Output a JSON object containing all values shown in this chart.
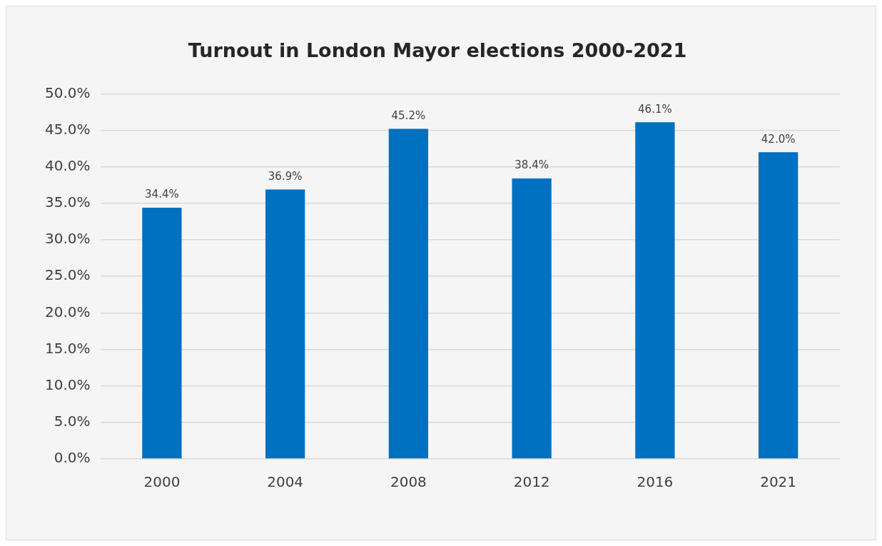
{
  "chart_data": {
    "type": "bar",
    "title": "Turnout in London Mayor elections 2000-2021",
    "categories": [
      "2000",
      "2004",
      "2008",
      "2012",
      "2016",
      "2021"
    ],
    "values": [
      34.4,
      36.9,
      45.2,
      38.4,
      46.1,
      42.0
    ],
    "value_labels": [
      "34.4%",
      "36.9%",
      "45.2%",
      "38.4%",
      "46.1%",
      "42.0%"
    ],
    "color": "#0070c0",
    "ylim": [
      0,
      50
    ],
    "yticks": [
      {
        "value": 0,
        "label": "0.0%"
      },
      {
        "value": 5,
        "label": "5.0%"
      },
      {
        "value": 10,
        "label": "10.0%"
      },
      {
        "value": 15,
        "label": "15.0%"
      },
      {
        "value": 20,
        "label": "20.0%"
      },
      {
        "value": 25,
        "label": "25.0%"
      },
      {
        "value": 30,
        "label": "30.0%"
      },
      {
        "value": 35,
        "label": "35.0%"
      },
      {
        "value": 40,
        "label": "40.0%"
      },
      {
        "value": 45,
        "label": "45.0%"
      },
      {
        "value": 50,
        "label": "50.0%"
      }
    ],
    "grid": "y",
    "legend": false
  }
}
